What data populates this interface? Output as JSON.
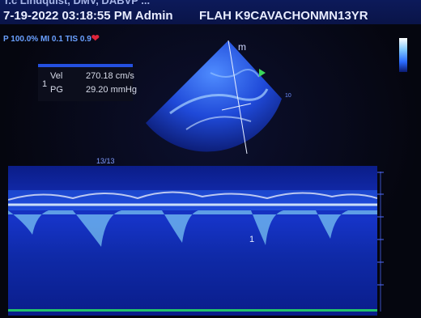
{
  "header": {
    "partial_top": "r.c Lindquist, DMV, DABVP ...",
    "datetime": "7-19-2022 03:18:55 PM",
    "user": "Admin",
    "patient": "FLAH K9CAVACHONMN13YR"
  },
  "params": {
    "line": "P 100.0%  MI 0.1  TIS 0.9",
    "heart_icon": "heart-icon"
  },
  "measurement": {
    "index": "1",
    "vel_label": "Vel",
    "vel_value": "270.18 cm/s",
    "pg_label": "PG",
    "pg_value": "29.20 mmHg"
  },
  "image": {
    "marker": "m",
    "depth_label": "10"
  },
  "doppler": {
    "frame_label": "13/13",
    "cursor_label": "1"
  },
  "colors": {
    "header_bg": "#0c1a5a",
    "accent": "#2450e0",
    "heart": "#e0243a",
    "baseline": "#22c26a"
  }
}
